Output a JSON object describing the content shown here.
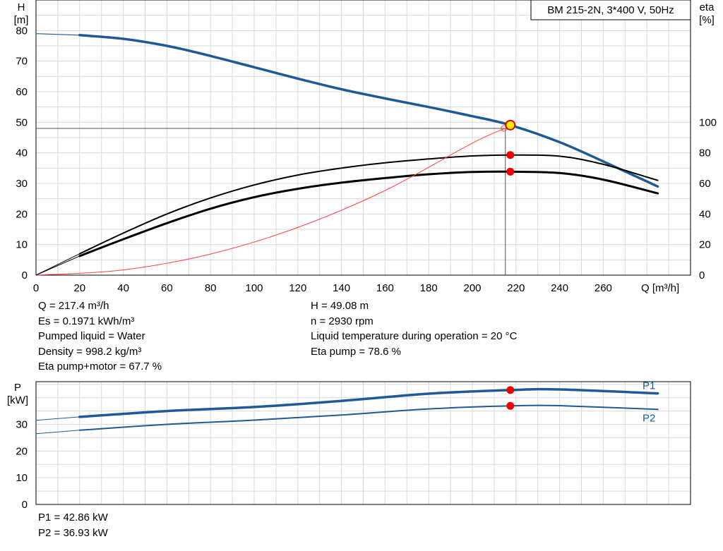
{
  "chart_data": [
    {
      "type": "line",
      "title": "BM 215-2N, 3*400 V, 50Hz",
      "xlabel": "Q [m³/h]",
      "ylabel_left_name": "H",
      "ylabel_left_unit": "[m]",
      "ylabel_right_name": "eta",
      "ylabel_right_unit": "[%]",
      "xlim": [
        0,
        300
      ],
      "ylim_left": [
        0,
        90
      ],
      "ylim_right": [
        0,
        180
      ],
      "x_ticks": [
        0,
        20,
        40,
        60,
        80,
        100,
        120,
        140,
        160,
        180,
        200,
        220,
        240,
        260
      ],
      "y_ticks_left": [
        0,
        10,
        20,
        30,
        40,
        50,
        60,
        70,
        80
      ],
      "y_ticks_right": [
        0,
        20,
        40,
        60,
        80,
        100
      ],
      "grid": true,
      "series": [
        {
          "role": "head",
          "axis": "left",
          "color": "#1f5a96",
          "x": [
            20,
            40,
            60,
            80,
            100,
            120,
            140,
            160,
            180,
            200,
            217.4,
            240,
            260,
            285
          ],
          "y": [
            78.5,
            77.3,
            75.0,
            71.7,
            68.0,
            64.3,
            60.8,
            57.8,
            55.0,
            52.0,
            49.08,
            43.5,
            37.2,
            29.0
          ]
        },
        {
          "role": "eta-pump",
          "axis": "right",
          "color": "#000000",
          "x": [
            20,
            40,
            60,
            80,
            100,
            120,
            140,
            160,
            180,
            200,
            217.4,
            240,
            260,
            285
          ],
          "y": [
            14.0,
            27.5,
            40.0,
            50.5,
            59.0,
            65.5,
            70.0,
            73.5,
            76.0,
            78.0,
            78.6,
            77.8,
            72.5,
            62.0
          ]
        },
        {
          "role": "eta-pump-motor",
          "axis": "right",
          "color": "#000000",
          "x": [
            20,
            40,
            60,
            80,
            100,
            120,
            140,
            160,
            180,
            200,
            217.4,
            240,
            260,
            285
          ],
          "y": [
            12.5,
            23.5,
            34.0,
            43.5,
            51.0,
            56.5,
            60.5,
            63.5,
            66.0,
            67.5,
            67.7,
            66.8,
            62.5,
            53.5
          ]
        },
        {
          "role": "system-curve",
          "axis": "left",
          "color": "#ff4040",
          "x": [
            0,
            40,
            80,
            120,
            160,
            200,
            215
          ],
          "y": [
            0,
            1.7,
            6.9,
            15.6,
            27.7,
            43.2,
            48.0
          ]
        },
        {
          "role": "head-extension",
          "axis": "left",
          "color": "#1f5a96",
          "x": [
            0,
            20
          ],
          "y": [
            79.0,
            78.5
          ]
        },
        {
          "role": "eta-pump-extension",
          "axis": "right",
          "color": "#000000",
          "x": [
            0,
            20
          ],
          "y": [
            0,
            14.0
          ]
        },
        {
          "role": "eta-pump-motor-extension",
          "axis": "right",
          "color": "#000000",
          "x": [
            0,
            20
          ],
          "y": [
            0,
            12.5
          ]
        }
      ],
      "operating_point": {
        "q": 217.4,
        "h": 49.08,
        "eta_pump": 78.6,
        "eta_pump_motor": 67.7,
        "guide_h": 48.0
      }
    },
    {
      "type": "line",
      "xlabel": "",
      "ylabel_name": "P",
      "ylabel_unit": "[kW]",
      "xlim": [
        0,
        300
      ],
      "ylim": [
        0,
        46
      ],
      "y_ticks": [
        0,
        10,
        20,
        30
      ],
      "grid": true,
      "series": [
        {
          "name": "P1",
          "color": "#1f5a96",
          "x": [
            20,
            60,
            100,
            140,
            180,
            217.4,
            240,
            285
          ],
          "y": [
            32.8,
            35.0,
            36.5,
            38.8,
            41.5,
            42.86,
            43.1,
            41.6
          ]
        },
        {
          "name": "P2",
          "color": "#1f5a96",
          "x": [
            20,
            60,
            100,
            140,
            180,
            217.4,
            240,
            285
          ],
          "y": [
            27.8,
            30.0,
            31.6,
            33.5,
            35.8,
            36.93,
            37.0,
            35.6
          ]
        },
        {
          "role": "P1-extension",
          "color": "#1f5a96",
          "x": [
            0,
            20
          ],
          "y": [
            31.5,
            32.8
          ]
        },
        {
          "role": "P2-extension",
          "color": "#1f5a96",
          "x": [
            0,
            20
          ],
          "y": [
            26.5,
            27.8
          ]
        }
      ],
      "operating_point": {
        "q": 217.4,
        "p1": 42.86,
        "p2": 36.93
      }
    }
  ],
  "info_left": [
    "Q = 217.4 m³/h",
    "Es = 0.1971 kWh/m³",
    "Pumped liquid = Water",
    "Density = 998.2 kg/m³",
    "Eta pump+motor = 67.7 %"
  ],
  "info_right": [
    "H = 49.08 m",
    "n = 2930 rpm",
    "Liquid temperature during operation = 20 °C",
    "Eta pump = 78.6 %"
  ],
  "power_info": [
    "P1 = 42.86 kW",
    "P2 = 36.93 kW"
  ]
}
